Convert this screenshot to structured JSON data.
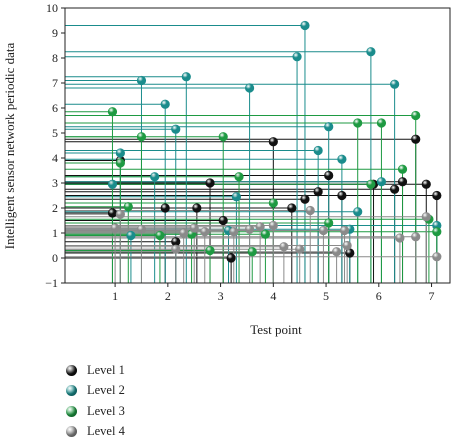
{
  "chart_data": {
    "type": "scatter",
    "title": "",
    "xlabel": "Test point",
    "ylabel": "Intelligent sensor network periodic data",
    "xlim": [
      0.05,
      7.35
    ],
    "ylim": [
      -1,
      10
    ],
    "xticks": [
      "1",
      "2",
      "3",
      "4",
      "5",
      "6",
      "7"
    ],
    "yticks": [
      "−1",
      "0",
      "1",
      "2",
      "3",
      "4",
      "5",
      "6",
      "7",
      "8",
      "9",
      "10"
    ],
    "grid": false,
    "legend_position": "bottom-left",
    "series": [
      {
        "name": "Level 1",
        "color": "#111111",
        "points": [
          [
            0.95,
            1.8
          ],
          [
            1.1,
            3.9
          ],
          [
            1.95,
            2.0
          ],
          [
            2.15,
            0.65
          ],
          [
            2.55,
            2.0
          ],
          [
            2.8,
            3.0
          ],
          [
            3.05,
            1.5
          ],
          [
            3.2,
            0.0
          ],
          [
            4.0,
            4.65
          ],
          [
            4.35,
            2.0
          ],
          [
            4.6,
            2.35
          ],
          [
            4.85,
            2.65
          ],
          [
            5.05,
            3.3
          ],
          [
            5.3,
            2.5
          ],
          [
            5.45,
            0.2
          ],
          [
            5.9,
            2.95
          ],
          [
            6.3,
            2.75
          ],
          [
            6.45,
            3.05
          ],
          [
            6.7,
            4.75
          ],
          [
            6.9,
            2.95
          ],
          [
            7.1,
            2.5
          ]
        ]
      },
      {
        "name": "Level 2",
        "color": "#1a8c8c",
        "points": [
          [
            0.95,
            2.95
          ],
          [
            1.1,
            4.2
          ],
          [
            1.3,
            0.9
          ],
          [
            1.5,
            7.1
          ],
          [
            1.75,
            3.25
          ],
          [
            1.95,
            6.15
          ],
          [
            2.15,
            5.15
          ],
          [
            2.35,
            7.25
          ],
          [
            3.15,
            1.1
          ],
          [
            3.3,
            2.45
          ],
          [
            3.55,
            6.8
          ],
          [
            4.45,
            8.05
          ],
          [
            4.6,
            9.3
          ],
          [
            4.85,
            4.3
          ],
          [
            5.05,
            5.25
          ],
          [
            5.3,
            3.95
          ],
          [
            5.45,
            1.15
          ],
          [
            5.6,
            1.85
          ],
          [
            5.85,
            8.25
          ],
          [
            6.05,
            3.05
          ],
          [
            6.3,
            6.95
          ],
          [
            7.1,
            1.3
          ]
        ]
      },
      {
        "name": "Level 3",
        "color": "#1e9a42",
        "points": [
          [
            0.95,
            5.85
          ],
          [
            1.1,
            3.8
          ],
          [
            1.25,
            2.05
          ],
          [
            1.5,
            4.85
          ],
          [
            1.85,
            0.9
          ],
          [
            2.45,
            0.95
          ],
          [
            2.8,
            0.3
          ],
          [
            3.05,
            4.85
          ],
          [
            3.35,
            3.25
          ],
          [
            3.6,
            0.25
          ],
          [
            3.85,
            0.95
          ],
          [
            4.0,
            2.2
          ],
          [
            5.05,
            1.4
          ],
          [
            5.6,
            5.4
          ],
          [
            5.85,
            2.95
          ],
          [
            6.05,
            5.4
          ],
          [
            6.45,
            3.55
          ],
          [
            6.7,
            5.7
          ],
          [
            6.95,
            1.55
          ],
          [
            7.1,
            1.05
          ]
        ]
      },
      {
        "name": "Level 4",
        "color": "#8a8a8a",
        "points": [
          [
            1.0,
            1.2
          ],
          [
            1.1,
            1.75
          ],
          [
            1.5,
            1.15
          ],
          [
            2.15,
            0.35
          ],
          [
            2.3,
            1.0
          ],
          [
            2.5,
            1.2
          ],
          [
            2.7,
            1.05
          ],
          [
            3.25,
            1.05
          ],
          [
            3.55,
            1.15
          ],
          [
            3.75,
            1.25
          ],
          [
            4.0,
            1.3
          ],
          [
            4.2,
            0.45
          ],
          [
            4.5,
            0.35
          ],
          [
            4.7,
            1.9
          ],
          [
            4.95,
            1.1
          ],
          [
            5.2,
            0.25
          ],
          [
            5.35,
            1.1
          ],
          [
            5.4,
            0.5
          ],
          [
            6.4,
            0.8
          ],
          [
            6.7,
            0.85
          ],
          [
            6.9,
            1.65
          ],
          [
            7.1,
            0.05
          ]
        ]
      }
    ]
  }
}
